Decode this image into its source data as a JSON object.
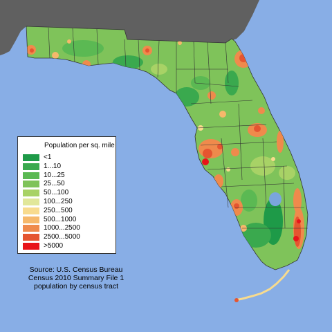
{
  "legend": {
    "title": "Population per sq. mile",
    "items": [
      {
        "label": "<1",
        "color": "#1e9a48"
      },
      {
        "label": "1...10",
        "color": "#3aa94e"
      },
      {
        "label": "10...25",
        "color": "#5bb953"
      },
      {
        "label": "25...50",
        "color": "#7fc35a"
      },
      {
        "label": "50...100",
        "color": "#a8d266"
      },
      {
        "label": "100...250",
        "color": "#e1e79a"
      },
      {
        "label": "250...500",
        "color": "#f8db8e"
      },
      {
        "label": "500...1000",
        "color": "#f6b86b"
      },
      {
        "label": "1000...2500",
        "color": "#ef8a4c"
      },
      {
        "label": "2500...5000",
        "color": "#e55530"
      },
      {
        "label": ">5000",
        "color": "#e8141a"
      }
    ]
  },
  "source": {
    "line1": "Source: U.S. Census Bureau",
    "line2": "Census 2010 Summary File 1",
    "line3": "population by census tract"
  },
  "colors": {
    "water": "#88aee6",
    "land_outside": "#606060",
    "lake": "#7aa5dd",
    "county_border": "#333333"
  }
}
